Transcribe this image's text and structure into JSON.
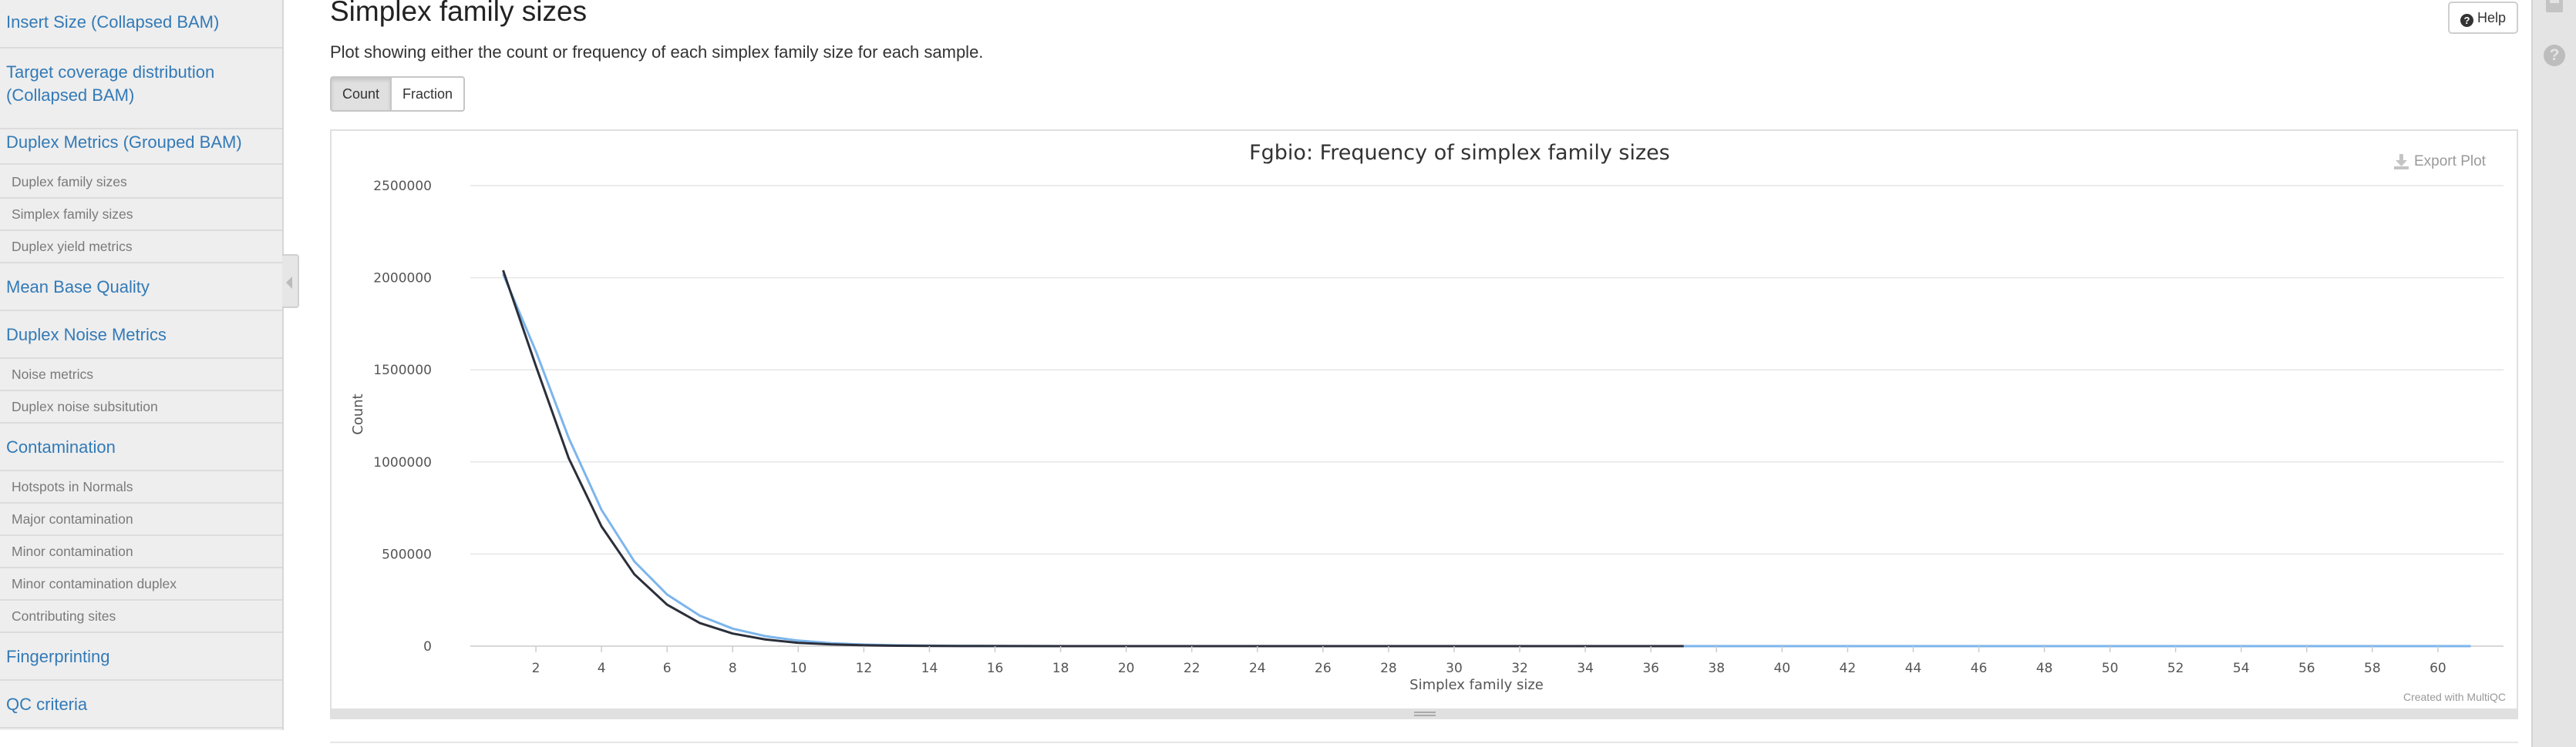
{
  "sidebar": {
    "items": [
      {
        "label": "Insert Size (Collapsed BAM)",
        "level": "main"
      },
      {
        "label": "Target coverage distribution (Collapsed BAM)",
        "level": "main"
      },
      {
        "label": "Duplex Metrics (Grouped BAM)",
        "level": "main"
      },
      {
        "label": "Duplex family sizes",
        "level": "sub"
      },
      {
        "label": "Simplex family sizes",
        "level": "sub"
      },
      {
        "label": "Duplex yield metrics",
        "level": "sub"
      },
      {
        "label": "Mean Base Quality",
        "level": "main"
      },
      {
        "label": "Duplex Noise Metrics",
        "level": "main"
      },
      {
        "label": "Noise metrics",
        "level": "sub"
      },
      {
        "label": "Duplex noise subsitution",
        "level": "sub"
      },
      {
        "label": "Contamination",
        "level": "main"
      },
      {
        "label": "Hotspots in Normals",
        "level": "sub"
      },
      {
        "label": "Major contamination",
        "level": "sub"
      },
      {
        "label": "Minor contamination",
        "level": "sub"
      },
      {
        "label": "Minor contamination duplex",
        "level": "sub"
      },
      {
        "label": "Contributing sites",
        "level": "sub"
      },
      {
        "label": "Fingerprinting",
        "level": "main"
      },
      {
        "label": "QC criteria",
        "level": "main"
      }
    ]
  },
  "section": {
    "title": "Simplex family sizes",
    "description": "Plot showing either the count or frequency of each simplex family size for each sample.",
    "help_label": "Help",
    "toggle": {
      "count_label": "Count",
      "fraction_label": "Fraction",
      "active": "Count"
    }
  },
  "plot": {
    "export_label": "Export Plot",
    "credit": "Created with MultiQC"
  },
  "colors": {
    "link": "#337ab7",
    "series_dark": "#2b2f3a",
    "series_light": "#7cb5ec"
  },
  "chart_data": {
    "type": "line",
    "title": "Fgbio: Frequency of simplex family sizes",
    "xlabel": "Simplex family size",
    "ylabel": "Count",
    "xlim": [
      0,
      62
    ],
    "ylim": [
      0,
      2500000
    ],
    "x_ticks": [
      2,
      4,
      6,
      8,
      10,
      12,
      14,
      16,
      18,
      20,
      22,
      24,
      26,
      28,
      30,
      32,
      34,
      36,
      38,
      40,
      42,
      44,
      46,
      48,
      50,
      52,
      54,
      56,
      58,
      60
    ],
    "y_ticks": [
      0,
      500000,
      1000000,
      1500000,
      2000000,
      2500000
    ],
    "grid": true,
    "series": [
      {
        "color": "#2b2f3a",
        "x": [
          1,
          2,
          3,
          4,
          5,
          6,
          7,
          8,
          9,
          10,
          11,
          12,
          13,
          14,
          15,
          16,
          18,
          20,
          25,
          30,
          37
        ],
        "y": [
          2040000,
          1520000,
          1020000,
          650000,
          390000,
          225000,
          125000,
          68000,
          36000,
          18000,
          9000,
          4500,
          2200,
          1100,
          500,
          250,
          80,
          20,
          5,
          2,
          0
        ]
      },
      {
        "color": "#7cb5ec",
        "x": [
          1,
          2,
          3,
          4,
          5,
          6,
          7,
          8,
          9,
          10,
          11,
          12,
          13,
          14,
          15,
          16,
          18,
          20,
          25,
          30,
          40,
          50,
          61
        ],
        "y": [
          2020000,
          1600000,
          1130000,
          740000,
          460000,
          280000,
          165000,
          95000,
          54000,
          30000,
          16000,
          8500,
          4500,
          2300,
          1200,
          600,
          150,
          40,
          8,
          3,
          1,
          0,
          0
        ]
      }
    ]
  }
}
